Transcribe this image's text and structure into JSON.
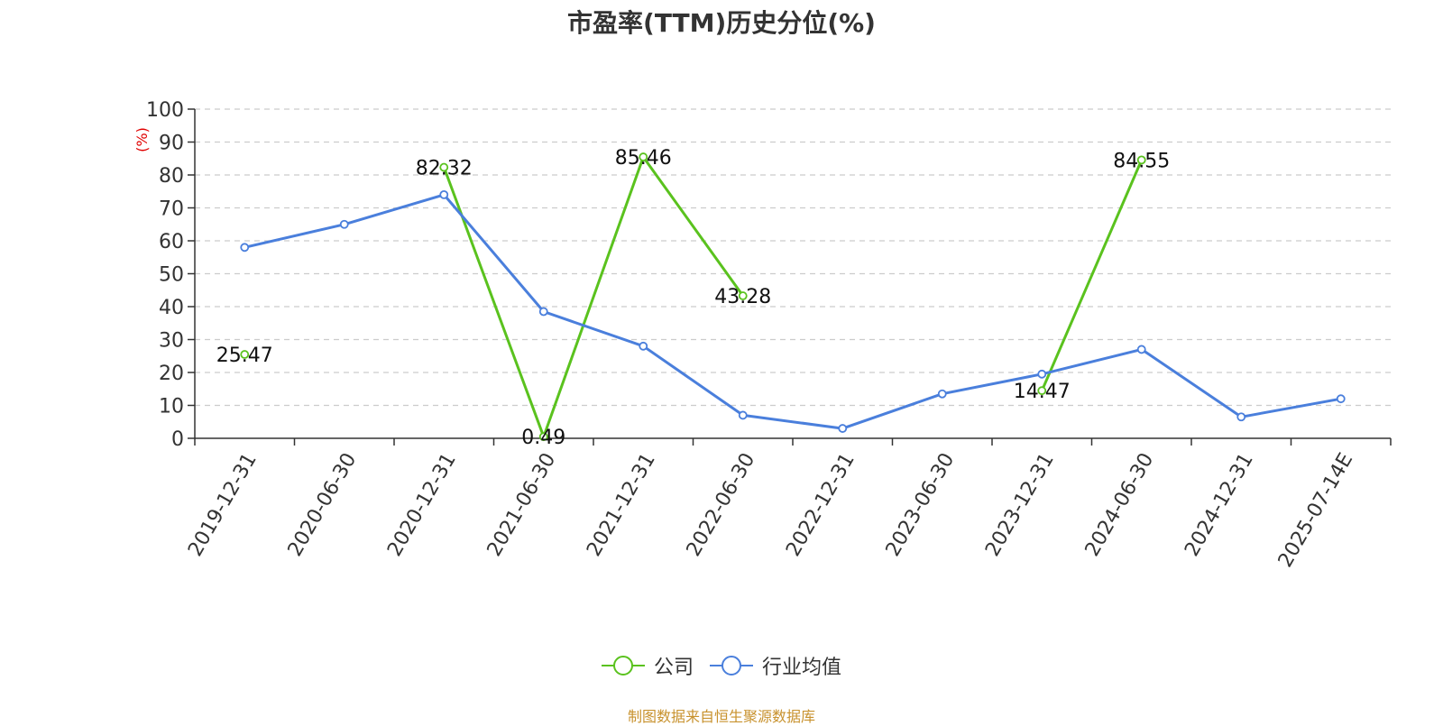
{
  "chart_data": {
    "type": "line",
    "title": "市盈率(TTM)历史分位(%)",
    "ylabel": "(%)",
    "ylim": [
      0,
      100
    ],
    "yticks": [
      0,
      10,
      20,
      30,
      40,
      50,
      60,
      70,
      80,
      90,
      100
    ],
    "categories": [
      "2019-12-31",
      "2020-06-30",
      "2020-12-31",
      "2021-06-30",
      "2021-12-31",
      "2022-06-30",
      "2022-12-31",
      "2023-06-30",
      "2023-12-31",
      "2024-06-30",
      "2024-12-31",
      "2025-07-14E"
    ],
    "grid": true,
    "legend_position": "bottom",
    "series": [
      {
        "name": "公司",
        "color": "#5ac21e",
        "values": [
          25.47,
          null,
          82.32,
          0.49,
          85.46,
          43.28,
          null,
          null,
          14.47,
          84.55,
          null,
          null
        ],
        "value_labels": [
          "25.47",
          "",
          "82.32",
          "0.49",
          "85.46",
          "43.28",
          "",
          "",
          "14.47",
          "84.55",
          "",
          ""
        ]
      },
      {
        "name": "行业均值",
        "color": "#4a7fdc",
        "values": [
          58,
          65,
          74,
          38.5,
          28,
          7,
          3,
          13.5,
          19.5,
          27,
          6.5,
          12
        ]
      }
    ]
  },
  "footer": {
    "source": "制图数据来自恒生聚源数据库"
  }
}
